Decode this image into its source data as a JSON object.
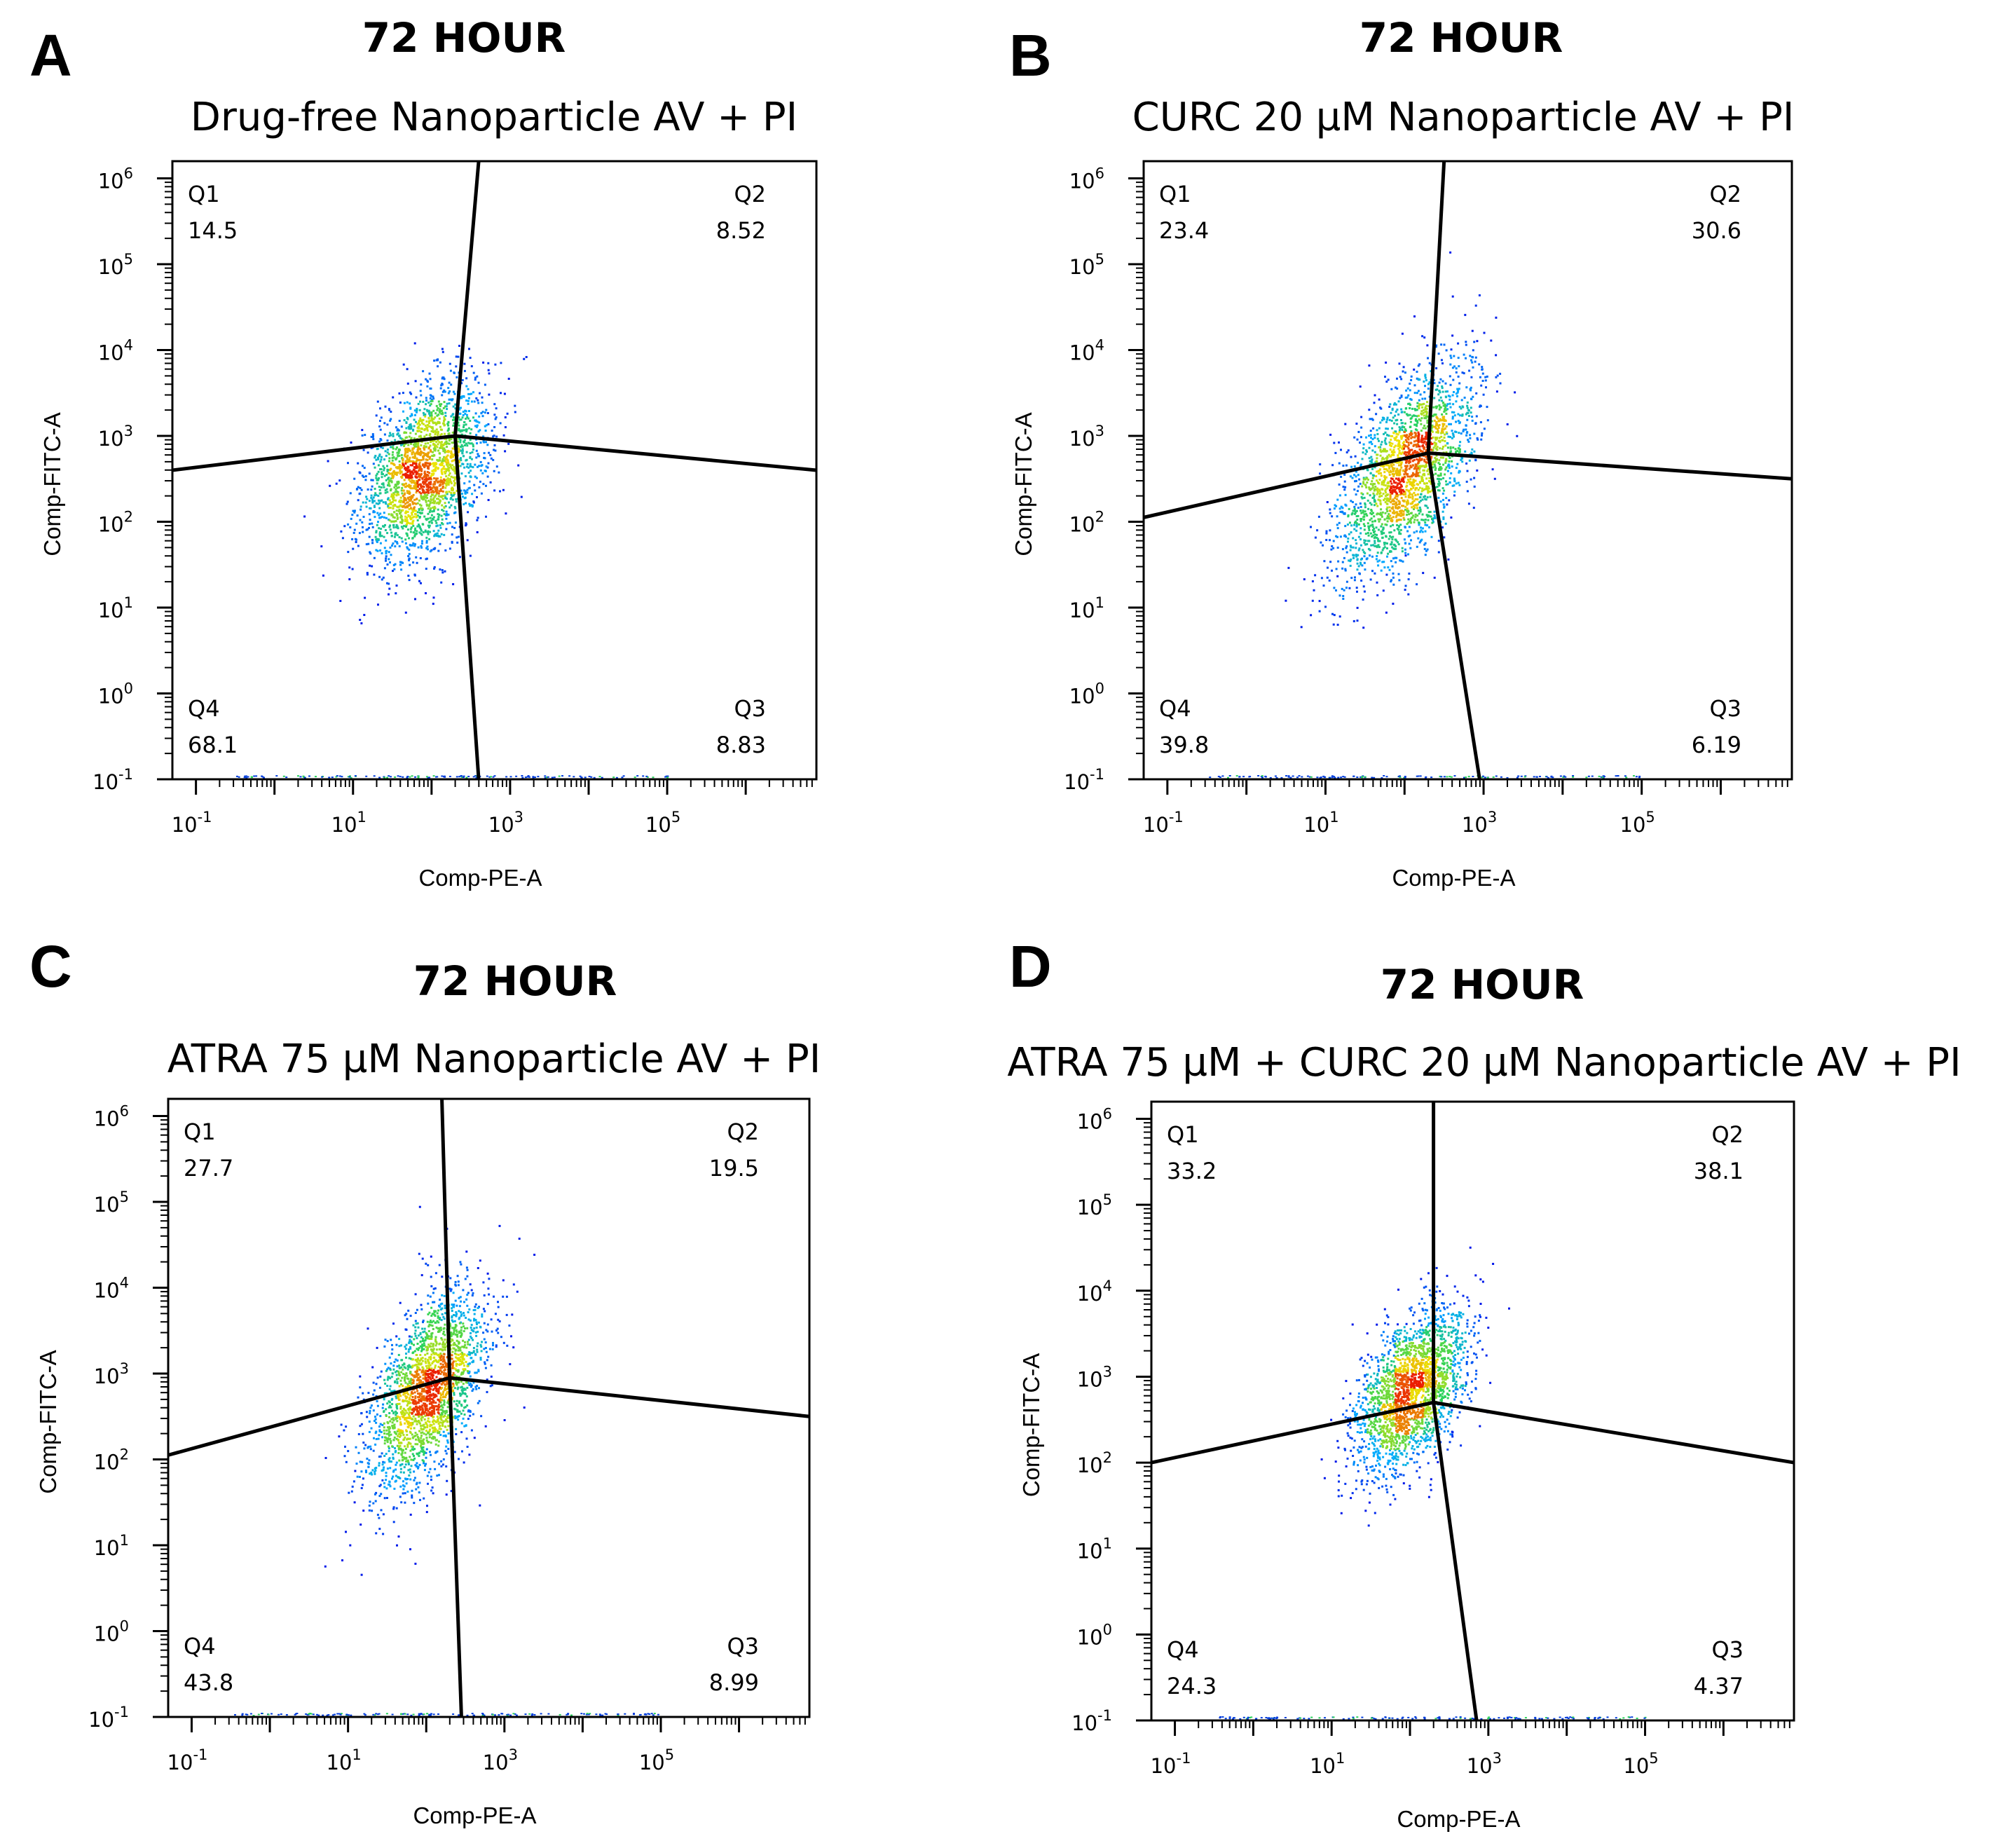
{
  "chart_data": [
    {
      "type": "scatter",
      "panel": "A",
      "timepoint": "72 HOUR",
      "title": "Drug-free Nanoparticle  AV + PI",
      "xlabel": "Comp-PE-A",
      "ylabel": "Comp-FITC-A",
      "xscale": "log",
      "xlim_exp": [
        -1.3,
        6.9
      ],
      "yscale": "log",
      "ylim_exp": [
        -1,
        6.2
      ],
      "x_ticks": [
        {
          "base": "10",
          "exp": "-1"
        },
        {
          "base": "10",
          "exp": "1"
        },
        {
          "base": "10",
          "exp": "3"
        },
        {
          "base": "10",
          "exp": "5"
        }
      ],
      "y_ticks": [
        {
          "base": "10",
          "exp": "-1"
        },
        {
          "base": "10",
          "exp": "0"
        },
        {
          "base": "10",
          "exp": "1"
        },
        {
          "base": "10",
          "exp": "2"
        },
        {
          "base": "10",
          "exp": "3"
        },
        {
          "base": "10",
          "exp": "4"
        },
        {
          "base": "10",
          "exp": "5"
        },
        {
          "base": "10",
          "exp": "6"
        }
      ],
      "quadrant_center_log": [
        2.3,
        3.0
      ],
      "gate_log": {
        "left_y": 2.6,
        "right_y": 2.6,
        "top_x": 2.6,
        "bottom_x": 2.6
      },
      "population": {
        "center_log": [
          1.9,
          2.6
        ],
        "spread_log": [
          0.75,
          0.85
        ],
        "tilt": 0.35,
        "count": 2200
      },
      "quadrants": [
        {
          "id": "Q1",
          "value": "14.5"
        },
        {
          "id": "Q2",
          "value": "8.52"
        },
        {
          "id": "Q3",
          "value": "8.83"
        },
        {
          "id": "Q4",
          "value": "68.1"
        }
      ]
    },
    {
      "type": "scatter",
      "panel": "B",
      "timepoint": "72 HOUR",
      "title": "CURC 20 µM Nanoparticle AV + PI",
      "xlabel": "Comp-PE-A",
      "ylabel": "Comp-FITC-A",
      "xscale": "log",
      "xlim_exp": [
        -1.3,
        6.9
      ],
      "yscale": "log",
      "ylim_exp": [
        -1,
        6.2
      ],
      "x_ticks": [
        {
          "base": "10",
          "exp": "-1"
        },
        {
          "base": "10",
          "exp": "1"
        },
        {
          "base": "10",
          "exp": "3"
        },
        {
          "base": "10",
          "exp": "5"
        }
      ],
      "y_ticks": [
        {
          "base": "10",
          "exp": "-1"
        },
        {
          "base": "10",
          "exp": "0"
        },
        {
          "base": "10",
          "exp": "1"
        },
        {
          "base": "10",
          "exp": "2"
        },
        {
          "base": "10",
          "exp": "3"
        },
        {
          "base": "10",
          "exp": "4"
        },
        {
          "base": "10",
          "exp": "5"
        },
        {
          "base": "10",
          "exp": "6"
        }
      ],
      "quadrant_center_log": [
        2.3,
        2.8
      ],
      "gate_log": {
        "left_y": 2.05,
        "right_y": 2.5,
        "top_x": 2.5,
        "bottom_x": 2.95
      },
      "population": {
        "center_log": [
          2.0,
          2.6
        ],
        "spread_log": [
          0.8,
          0.9
        ],
        "tilt": 0.55,
        "count": 2200
      },
      "quadrants": [
        {
          "id": "Q1",
          "value": "23.4"
        },
        {
          "id": "Q2",
          "value": "30.6"
        },
        {
          "id": "Q3",
          "value": "6.19"
        },
        {
          "id": "Q4",
          "value": "39.8"
        }
      ]
    },
    {
      "type": "scatter",
      "panel": "C",
      "timepoint": "72 HOUR",
      "title": "ATRA 75 µM Nanoparticle AV + PI",
      "xlabel": "Comp-PE-A",
      "ylabel": "Comp-FITC-A",
      "xscale": "log",
      "xlim_exp": [
        -1.3,
        6.9
      ],
      "yscale": "log",
      "ylim_exp": [
        -1,
        6.2
      ],
      "x_ticks": [
        {
          "base": "10",
          "exp": "-1"
        },
        {
          "base": "10",
          "exp": "1"
        },
        {
          "base": "10",
          "exp": "3"
        },
        {
          "base": "10",
          "exp": "5"
        }
      ],
      "y_ticks": [
        {
          "base": "10",
          "exp": "-1"
        },
        {
          "base": "10",
          "exp": "0"
        },
        {
          "base": "10",
          "exp": "1"
        },
        {
          "base": "10",
          "exp": "2"
        },
        {
          "base": "10",
          "exp": "3"
        },
        {
          "base": "10",
          "exp": "4"
        },
        {
          "base": "10",
          "exp": "5"
        },
        {
          "base": "10",
          "exp": "6"
        }
      ],
      "quadrant_center_log": [
        2.3,
        2.95
      ],
      "gate_log": {
        "left_y": 2.05,
        "right_y": 2.5,
        "top_x": 2.2,
        "bottom_x": 2.45
      },
      "population": {
        "center_log": [
          2.0,
          2.8
        ],
        "spread_log": [
          0.7,
          0.9
        ],
        "tilt": 0.5,
        "count": 2200
      },
      "quadrants": [
        {
          "id": "Q1",
          "value": "27.7"
        },
        {
          "id": "Q2",
          "value": "19.5"
        },
        {
          "id": "Q3",
          "value": "8.99"
        },
        {
          "id": "Q4",
          "value": "43.8"
        }
      ]
    },
    {
      "type": "scatter",
      "panel": "D",
      "timepoint": "72 HOUR",
      "title": "ATRA 75 µM + CURC 20 µM Nanoparticle AV + PI",
      "xlabel": "Comp-PE-A",
      "ylabel": "Comp-FITC-A",
      "xscale": "log",
      "xlim_exp": [
        -1.3,
        6.9
      ],
      "yscale": "log",
      "ylim_exp": [
        -1,
        6.2
      ],
      "x_ticks": [
        {
          "base": "10",
          "exp": "-1"
        },
        {
          "base": "10",
          "exp": "1"
        },
        {
          "base": "10",
          "exp": "3"
        },
        {
          "base": "10",
          "exp": "5"
        }
      ],
      "y_ticks": [
        {
          "base": "10",
          "exp": "-1"
        },
        {
          "base": "10",
          "exp": "0"
        },
        {
          "base": "10",
          "exp": "1"
        },
        {
          "base": "10",
          "exp": "2"
        },
        {
          "base": "10",
          "exp": "3"
        },
        {
          "base": "10",
          "exp": "4"
        },
        {
          "base": "10",
          "exp": "5"
        },
        {
          "base": "10",
          "exp": "6"
        }
      ],
      "quadrant_center_log": [
        2.3,
        2.7
      ],
      "gate_log": {
        "left_y": 2.0,
        "right_y": 2.0,
        "top_x": 2.3,
        "bottom_x": 2.85
      },
      "population": {
        "center_log": [
          2.0,
          2.85
        ],
        "spread_log": [
          0.65,
          0.75
        ],
        "tilt": 0.45,
        "count": 2200
      },
      "quadrants": [
        {
          "id": "Q1",
          "value": "33.2"
        },
        {
          "id": "Q2",
          "value": "38.1"
        },
        {
          "id": "Q3",
          "value": "4.37"
        },
        {
          "id": "Q4",
          "value": "24.3"
        }
      ]
    }
  ]
}
